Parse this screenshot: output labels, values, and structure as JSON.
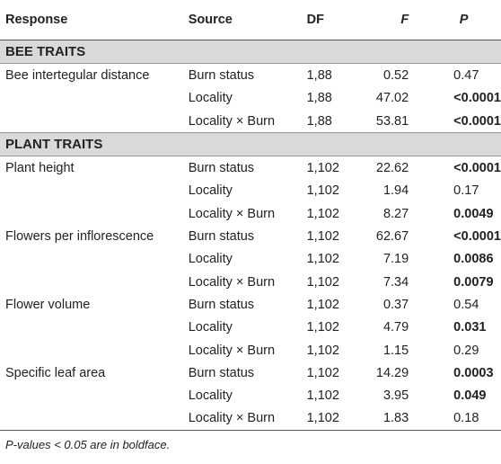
{
  "header": {
    "response": "Response",
    "source": "Source",
    "df": "DF",
    "f": "F",
    "p": "P"
  },
  "sections": [
    {
      "title": "BEE TRAITS",
      "rows": [
        {
          "response": "Bee intertegular distance",
          "source": "Burn status",
          "df": "1,88",
          "f": "0.52",
          "p": "0.47",
          "bold": false
        },
        {
          "response": "",
          "source": "Locality",
          "df": "1,88",
          "f": "47.02",
          "p": "<0.0001",
          "bold": true
        },
        {
          "response": "",
          "source": "Locality × Burn",
          "df": "1,88",
          "f": "53.81",
          "p": "<0.0001",
          "bold": true
        }
      ]
    },
    {
      "title": "PLANT TRAITS",
      "rows": [
        {
          "response": "Plant height",
          "source": "Burn status",
          "df": "1,102",
          "f": "22.62",
          "p": "<0.0001",
          "bold": true
        },
        {
          "response": "",
          "source": "Locality",
          "df": "1,102",
          "f": "1.94",
          "p": "0.17",
          "bold": false
        },
        {
          "response": "",
          "source": "Locality × Burn",
          "df": "1,102",
          "f": "8.27",
          "p": "0.0049",
          "bold": true
        },
        {
          "response": "Flowers per inflorescence",
          "source": "Burn status",
          "df": "1,102",
          "f": "62.67",
          "p": "<0.0001",
          "bold": true
        },
        {
          "response": "",
          "source": "Locality",
          "df": "1,102",
          "f": "7.19",
          "p": "0.0086",
          "bold": true
        },
        {
          "response": "",
          "source": "Locality × Burn",
          "df": "1,102",
          "f": "7.34",
          "p": "0.0079",
          "bold": true
        },
        {
          "response": "Flower volume",
          "source": "Burn status",
          "df": "1,102",
          "f": "0.37",
          "p": "0.54",
          "bold": false
        },
        {
          "response": "",
          "source": "Locality",
          "df": "1,102",
          "f": "4.79",
          "p": "0.031",
          "bold": true
        },
        {
          "response": "",
          "source": "Locality × Burn",
          "df": "1,102",
          "f": "1.15",
          "p": "0.29",
          "bold": false
        },
        {
          "response": "Specific leaf area",
          "source": "Burn status",
          "df": "1,102",
          "f": "14.29",
          "p": "0.0003",
          "bold": true
        },
        {
          "response": "",
          "source": "Locality",
          "df": "1,102",
          "f": "3.95",
          "p": "0.049",
          "bold": true
        },
        {
          "response": "",
          "source": "Locality × Burn",
          "df": "1,102",
          "f": "1.83",
          "p": "0.18",
          "bold": false
        }
      ]
    }
  ],
  "footnote": "P-values < 0.05 are in boldface."
}
